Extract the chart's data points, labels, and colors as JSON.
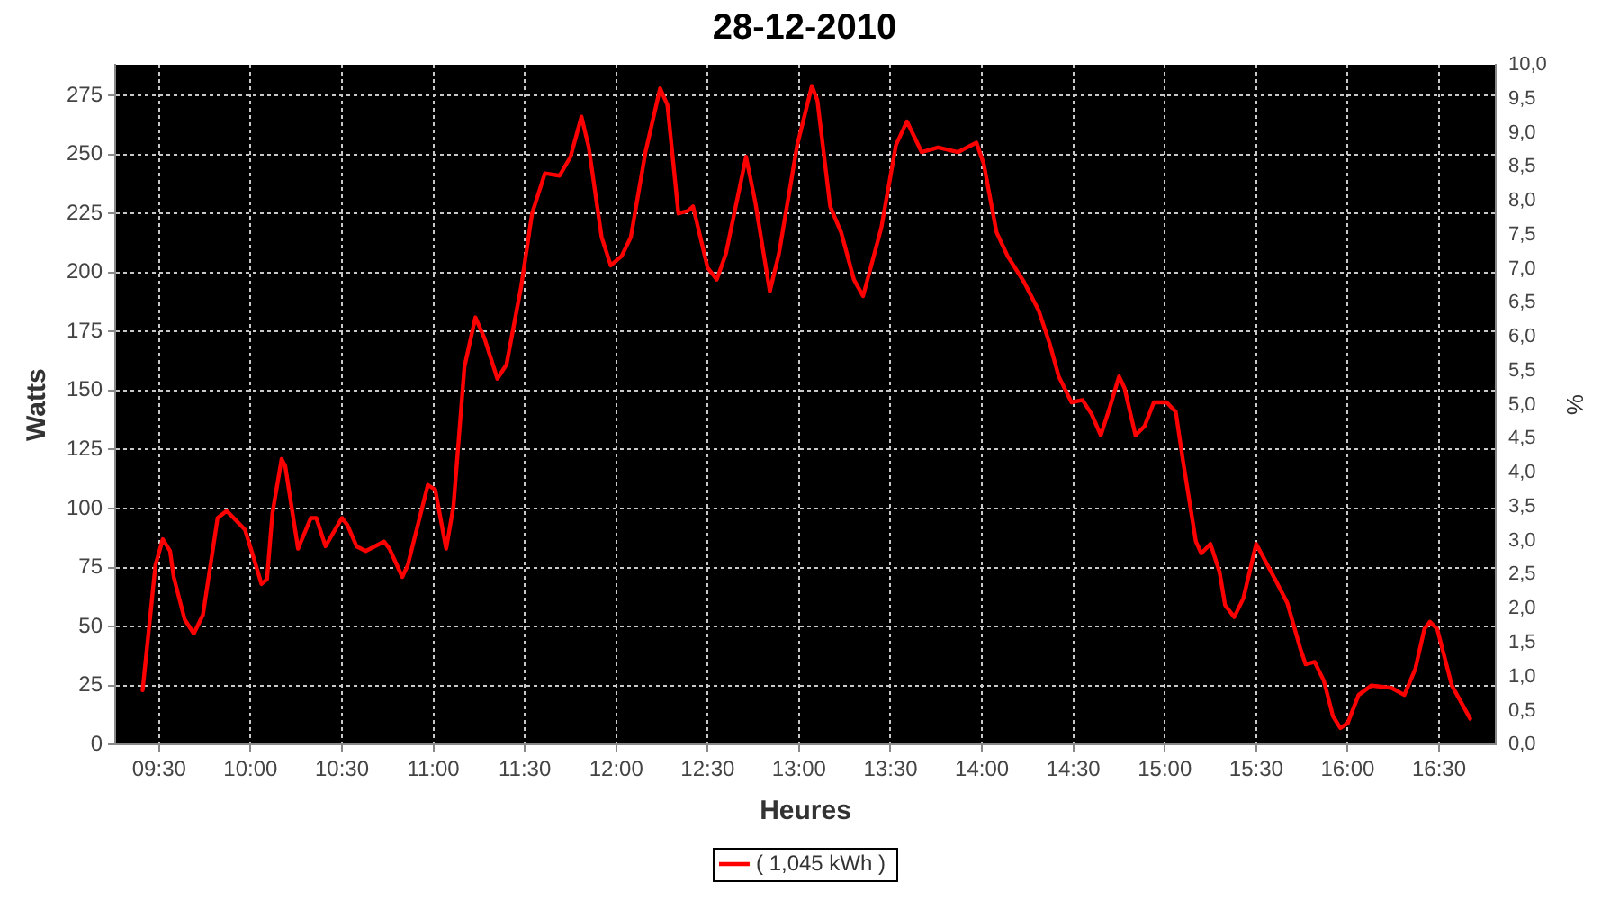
{
  "chart_data": {
    "type": "line",
    "title": "28-12-2010",
    "xlabel": "Heures",
    "ylabel": "Watts",
    "y2label": "%",
    "xlim": [
      9.26,
      16.81
    ],
    "xticks": [
      {
        "value": 9.5,
        "label": "09:30"
      },
      {
        "value": 10,
        "label": "10:00"
      },
      {
        "value": 10.5,
        "label": "10:30"
      },
      {
        "value": 11,
        "label": "11:00"
      },
      {
        "value": 11.5,
        "label": "11:30"
      },
      {
        "value": 12,
        "label": "12:00"
      },
      {
        "value": 12.5,
        "label": "12:30"
      },
      {
        "value": 13,
        "label": "13:00"
      },
      {
        "value": 13.5,
        "label": "13:30"
      },
      {
        "value": 14,
        "label": "14:00"
      },
      {
        "value": 14.5,
        "label": "14:30"
      },
      {
        "value": 15,
        "label": "15:00"
      },
      {
        "value": 15.5,
        "label": "15:30"
      },
      {
        "value": 16,
        "label": "16:00"
      },
      {
        "value": 16.5,
        "label": "16:30"
      }
    ],
    "ylim": [
      0,
      288
    ],
    "yticks": [
      0,
      25,
      50,
      75,
      100,
      125,
      150,
      175,
      200,
      225,
      250,
      275
    ],
    "y2lim": [
      0,
      10
    ],
    "y2ticks": [
      {
        "value": 0,
        "label": "0,0"
      },
      {
        "value": 0.5,
        "label": "0,5"
      },
      {
        "value": 1,
        "label": "1,0"
      },
      {
        "value": 1.5,
        "label": "1,5"
      },
      {
        "value": 2,
        "label": "2,0"
      },
      {
        "value": 2.5,
        "label": "2,5"
      },
      {
        "value": 3,
        "label": "3,0"
      },
      {
        "value": 3.5,
        "label": "3,5"
      },
      {
        "value": 4,
        "label": "4,0"
      },
      {
        "value": 4.5,
        "label": "4,5"
      },
      {
        "value": 5,
        "label": "5,0"
      },
      {
        "value": 5.5,
        "label": "5,5"
      },
      {
        "value": 6,
        "label": "6,0"
      },
      {
        "value": 6.5,
        "label": "6,5"
      },
      {
        "value": 7,
        "label": "7,0"
      },
      {
        "value": 7.5,
        "label": "7,5"
      },
      {
        "value": 8,
        "label": "8,0"
      },
      {
        "value": 8.5,
        "label": "8,5"
      },
      {
        "value": 9,
        "label": "9,0"
      },
      {
        "value": 9.5,
        "label": "9,5"
      },
      {
        "value": 10,
        "label": "10,0"
      }
    ],
    "grid": true,
    "legend": "bottom",
    "marker": "none",
    "line_style": "solid",
    "x": [
      9.41,
      9.48,
      9.52,
      9.56,
      9.58,
      9.64,
      9.69,
      9.74,
      9.82,
      9.87,
      9.97,
      10.01,
      10.06,
      10.09,
      10.12,
      10.17,
      10.19,
      10.26,
      10.33,
      10.36,
      10.41,
      10.5,
      10.53,
      10.58,
      10.63,
      10.73,
      10.76,
      10.83,
      10.86,
      10.97,
      11.01,
      11.07,
      11.11,
      11.17,
      11.23,
      11.28,
      11.35,
      11.4,
      11.48,
      11.54,
      11.61,
      11.69,
      11.75,
      11.81,
      11.85,
      11.92,
      11.97,
      12.03,
      12.08,
      12.16,
      12.24,
      12.28,
      12.34,
      12.39,
      12.42,
      12.5,
      12.55,
      12.6,
      12.71,
      12.76,
      12.84,
      12.89,
      12.99,
      13.07,
      13.1,
      13.17,
      13.23,
      13.3,
      13.35,
      13.45,
      13.53,
      13.59,
      13.67,
      13.76,
      13.87,
      13.97,
      14.01,
      14.08,
      14.14,
      14.23,
      14.31,
      14.37,
      14.42,
      14.49,
      14.55,
      14.6,
      14.65,
      14.7,
      14.75,
      14.78,
      14.84,
      14.89,
      14.94,
      15.01,
      15.06,
      15.1,
      15.17,
      15.2,
      15.25,
      15.3,
      15.33,
      15.38,
      15.43,
      15.5,
      15.61,
      15.67,
      15.74,
      15.77,
      15.82,
      15.87,
      15.92,
      15.96,
      16,
      16.06,
      16.13,
      16.24,
      16.31,
      16.37,
      16.42,
      16.45,
      16.49,
      16.57,
      16.67
    ],
    "series": [
      {
        "name": "( 1,045 kWh )",
        "color": "#ff0000",
        "values": [
          23,
          76,
          87,
          82,
          71,
          53,
          47,
          55,
          96,
          99,
          91,
          81,
          68,
          70,
          98,
          121,
          118,
          83,
          96,
          96,
          84,
          96,
          93,
          84,
          82,
          86,
          83,
          71,
          76,
          110,
          108,
          83,
          101,
          160,
          181,
          172,
          155,
          161,
          194,
          225,
          242,
          241,
          249,
          266,
          253,
          215,
          203,
          207,
          215,
          251,
          278,
          271,
          225,
          226,
          228,
          202,
          197,
          208,
          249,
          230,
          192,
          208,
          254,
          279,
          273,
          228,
          217,
          197,
          190,
          219,
          254,
          264,
          251,
          253,
          251,
          255,
          246,
          217,
          207,
          196,
          184,
          170,
          156,
          145,
          146,
          140,
          131,
          143,
          156,
          151,
          131,
          135,
          145,
          145,
          141,
          120,
          86,
          81,
          85,
          73,
          59,
          54,
          62,
          85,
          69,
          60,
          41,
          34,
          35,
          27,
          12,
          7,
          9,
          21,
          25,
          24,
          21,
          32,
          49,
          52,
          49,
          25,
          11
        ]
      }
    ]
  }
}
